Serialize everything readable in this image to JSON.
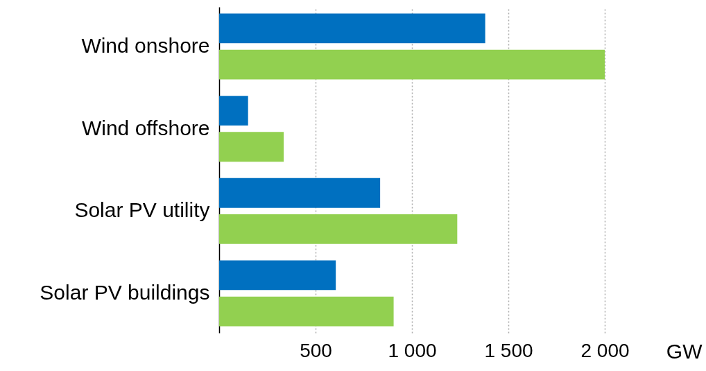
{
  "chart_data": {
    "type": "bar",
    "orientation": "horizontal",
    "categories": [
      "Wind onshore",
      "Wind offshore",
      "Solar PV utility",
      "Solar PV buildings"
    ],
    "series": [
      {
        "color": "#0070c0",
        "values": [
          1380,
          150,
          835,
          605
        ]
      },
      {
        "color": "#92d050",
        "values": [
          2000,
          335,
          1235,
          905
        ]
      }
    ],
    "xlabel": "GW",
    "xlim": [
      0,
      2000
    ],
    "xticks": [
      {
        "value": 500,
        "label": "500"
      },
      {
        "value": 1000,
        "label": "1 000"
      },
      {
        "value": 1500,
        "label": "1 500"
      },
      {
        "value": 2000,
        "label": "2 000"
      }
    ],
    "grid": "x"
  }
}
